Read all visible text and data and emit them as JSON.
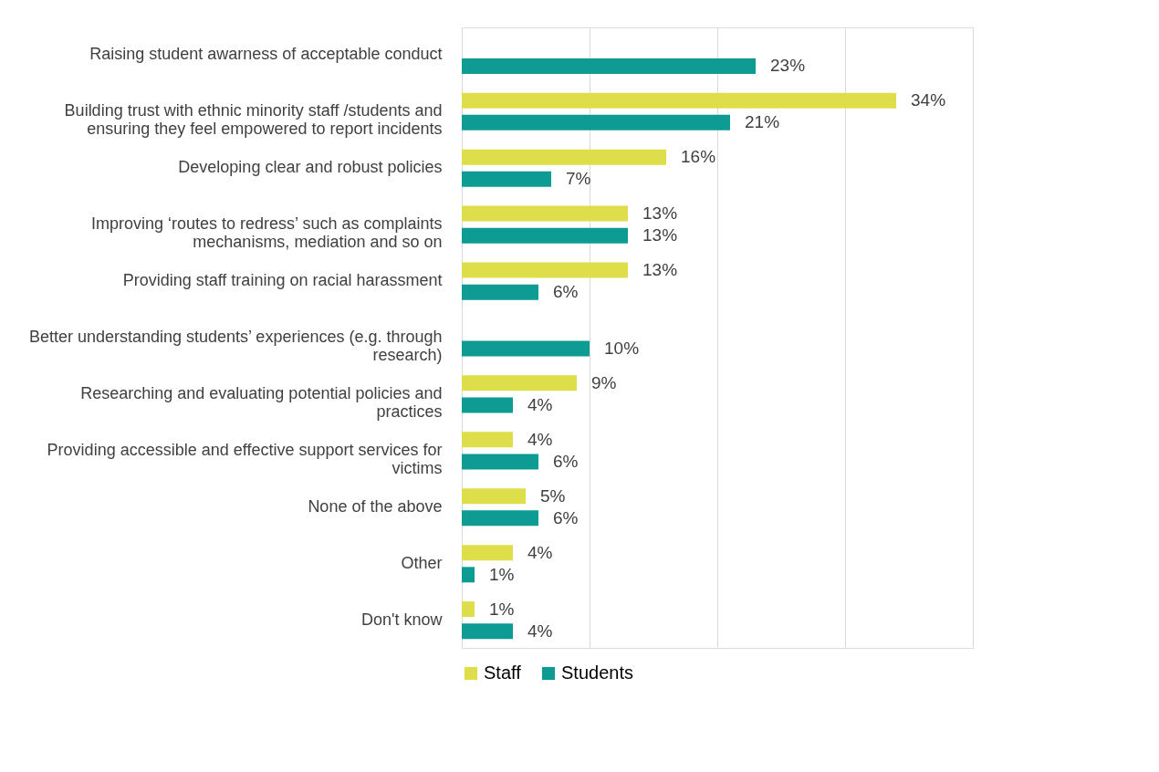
{
  "chart_data": {
    "type": "bar",
    "orientation": "horizontal",
    "categories": [
      "Raising student awarness of acceptable conduct",
      "Building trust with ethnic minority staff /students and ensuring they feel empowered to report incidents",
      "Developing clear and robust policies",
      "Improving ‘routes to redress’ such as complaints mechanisms, mediation and so on",
      "Providing staff training on racial harassment",
      "Better understanding students’ experiences (e.g. through research)",
      "Researching and evaluating potential policies and practices",
      "Providing accessible and effective support services for victims",
      "None  of the above",
      "Other",
      "Don't know"
    ],
    "series": [
      {
        "name": "Staff",
        "color": "#dede4a",
        "values": [
          null,
          34,
          16,
          13,
          13,
          null,
          9,
          4,
          5,
          4,
          1
        ],
        "value_labels": [
          null,
          "34%",
          "16%",
          "13%",
          "13%",
          null,
          "9%",
          "4%",
          "5%",
          "4%",
          "1%"
        ]
      },
      {
        "name": "Students",
        "color": "#0e9b94",
        "values": [
          23,
          21,
          7,
          13,
          6,
          10,
          4,
          6,
          6,
          1,
          4
        ],
        "value_labels": [
          "23%",
          "21%",
          "7%",
          "13%",
          "6%",
          "10%",
          "4%",
          "6%",
          "6%",
          "1%",
          "4%"
        ]
      }
    ],
    "xlim": [
      0,
      40
    ],
    "xticks": [
      {
        "value": 0,
        "label": null
      },
      {
        "value": 10,
        "label": null
      },
      {
        "value": 20,
        "label": null
      },
      {
        "value": 30,
        "label": null
      },
      {
        "value": 40,
        "label": null
      }
    ],
    "tick_labels": "y",
    "grid": "x",
    "legend": "bottom"
  }
}
